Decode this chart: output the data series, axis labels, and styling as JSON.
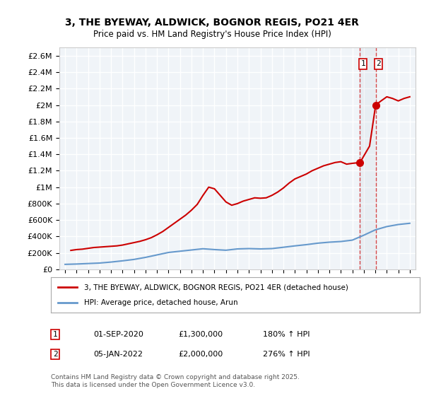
{
  "title": "3, THE BYEWAY, ALDWICK, BOGNOR REGIS, PO21 4ER",
  "subtitle": "Price paid vs. HM Land Registry's House Price Index (HPI)",
  "ylabel": "",
  "background_color": "#ffffff",
  "plot_bg_color": "#f0f4f8",
  "grid_color": "#ffffff",
  "legend_entries": [
    "3, THE BYEWAY, ALDWICK, BOGNOR REGIS, PO21 4ER (detached house)",
    "HPI: Average price, detached house, Arun"
  ],
  "annotation1_label": "1",
  "annotation1_date": "01-SEP-2020",
  "annotation1_price": "£1,300,000",
  "annotation1_hpi": "180% ↑ HPI",
  "annotation2_label": "2",
  "annotation2_date": "05-JAN-2022",
  "annotation2_price": "£2,000,000",
  "annotation2_hpi": "276% ↑ HPI",
  "footer": "Contains HM Land Registry data © Crown copyright and database right 2025.\nThis data is licensed under the Open Government Licence v3.0.",
  "red_color": "#cc0000",
  "blue_color": "#6699cc",
  "marker1_x": 2020.67,
  "marker2_x": 2022.03,
  "hpi_line": {
    "x": [
      1995,
      1996,
      1997,
      1998,
      1999,
      2000,
      2001,
      2002,
      2003,
      2004,
      2005,
      2006,
      2007,
      2008,
      2009,
      2010,
      2011,
      2012,
      2013,
      2014,
      2015,
      2016,
      2017,
      2018,
      2019,
      2020,
      2021,
      2022,
      2023,
      2024,
      2025
    ],
    "y": [
      60000,
      64000,
      70000,
      76000,
      88000,
      103000,
      120000,
      145000,
      175000,
      205000,
      220000,
      235000,
      250000,
      240000,
      232000,
      248000,
      252000,
      248000,
      252000,
      268000,
      285000,
      300000,
      318000,
      330000,
      338000,
      355000,
      415000,
      480000,
      520000,
      545000,
      560000
    ]
  },
  "price_line": {
    "x": [
      1995.5,
      1996,
      1996.5,
      1997,
      1997.5,
      1998,
      1998.5,
      1999,
      1999.5,
      2000,
      2000.5,
      2001,
      2001.5,
      2002,
      2002.5,
      2003,
      2003.5,
      2004,
      2004.5,
      2005,
      2005.5,
      2006,
      2006.5,
      2007,
      2007.5,
      2008,
      2008.5,
      2009,
      2009.5,
      2010,
      2010.5,
      2011,
      2011.5,
      2012,
      2012.5,
      2013,
      2013.5,
      2014,
      2014.5,
      2015,
      2015.5,
      2016,
      2016.5,
      2017,
      2017.5,
      2018,
      2018.5,
      2019,
      2019.5,
      2020,
      2020.67,
      2021,
      2021.5,
      2022.03,
      2022.5,
      2023,
      2023.5,
      2024,
      2024.5,
      2025
    ],
    "y": [
      230000,
      240000,
      245000,
      255000,
      265000,
      270000,
      275000,
      280000,
      285000,
      295000,
      310000,
      325000,
      340000,
      360000,
      385000,
      420000,
      460000,
      510000,
      560000,
      610000,
      660000,
      720000,
      790000,
      900000,
      1000000,
      980000,
      900000,
      820000,
      780000,
      800000,
      830000,
      850000,
      870000,
      865000,
      870000,
      900000,
      940000,
      990000,
      1050000,
      1100000,
      1130000,
      1160000,
      1200000,
      1230000,
      1260000,
      1280000,
      1300000,
      1310000,
      1280000,
      1290000,
      1300000,
      1380000,
      1500000,
      2000000,
      2050000,
      2100000,
      2080000,
      2050000,
      2080000,
      2100000
    ]
  },
  "ylim": [
    0,
    2700000
  ],
  "xlim": [
    1994.5,
    2025.5
  ],
  "yticks": [
    0,
    200000,
    400000,
    600000,
    800000,
    1000000,
    1200000,
    1400000,
    1600000,
    1800000,
    2000000,
    2200000,
    2400000,
    2600000
  ],
  "ytick_labels": [
    "£0",
    "£200K",
    "£400K",
    "£600K",
    "£800K",
    "£1M",
    "£1.2M",
    "£1.4M",
    "£1.6M",
    "£1.8M",
    "£2M",
    "£2.2M",
    "£2.4M",
    "£2.6M"
  ],
  "xticks": [
    1995,
    1996,
    1997,
    1998,
    1999,
    2000,
    2001,
    2002,
    2003,
    2004,
    2005,
    2006,
    2007,
    2008,
    2009,
    2010,
    2011,
    2012,
    2013,
    2014,
    2015,
    2016,
    2017,
    2018,
    2019,
    2020,
    2021,
    2022,
    2023,
    2024,
    2025
  ]
}
